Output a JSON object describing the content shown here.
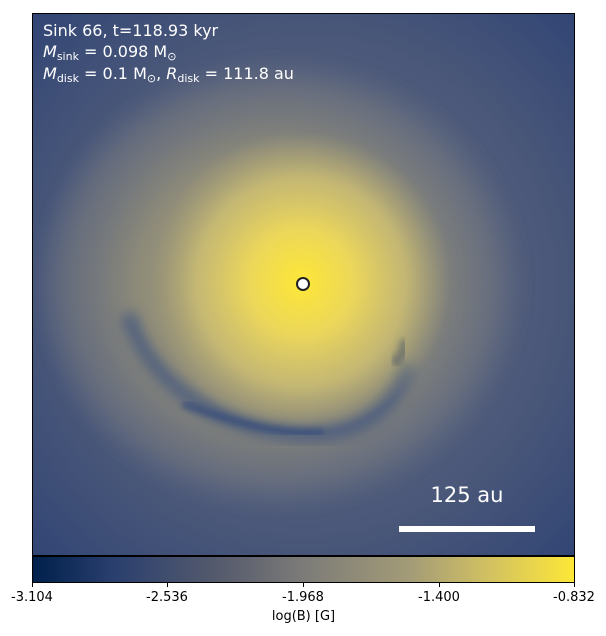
{
  "annotation": {
    "line1": "Sink 66, t=118.93 kyr",
    "line2_prefix": "M",
    "line2_sub": "sink",
    "line2_rest": " = 0.098 M",
    "line2_sub2": "⊙",
    "line3_prefix": "M",
    "line3_sub": "disk",
    "line3_mid": " = 0.1 M",
    "line3_sub2": "⊙",
    "line3_sep": ", ",
    "line3_r": "R",
    "line3_rsub": "disk",
    "line3_rest": " = 111.8 au"
  },
  "scale_bar": {
    "label": "125 au"
  },
  "colorbar": {
    "label": "log(B) [G]",
    "ticks": [
      "-3.104",
      "-2.536",
      "-1.968",
      "-1.400",
      "-0.832"
    ]
  },
  "colors": {
    "cmap_low": "#00204c",
    "cmap_mid": "#7c7b78",
    "cmap_high": "#fde737"
  }
}
